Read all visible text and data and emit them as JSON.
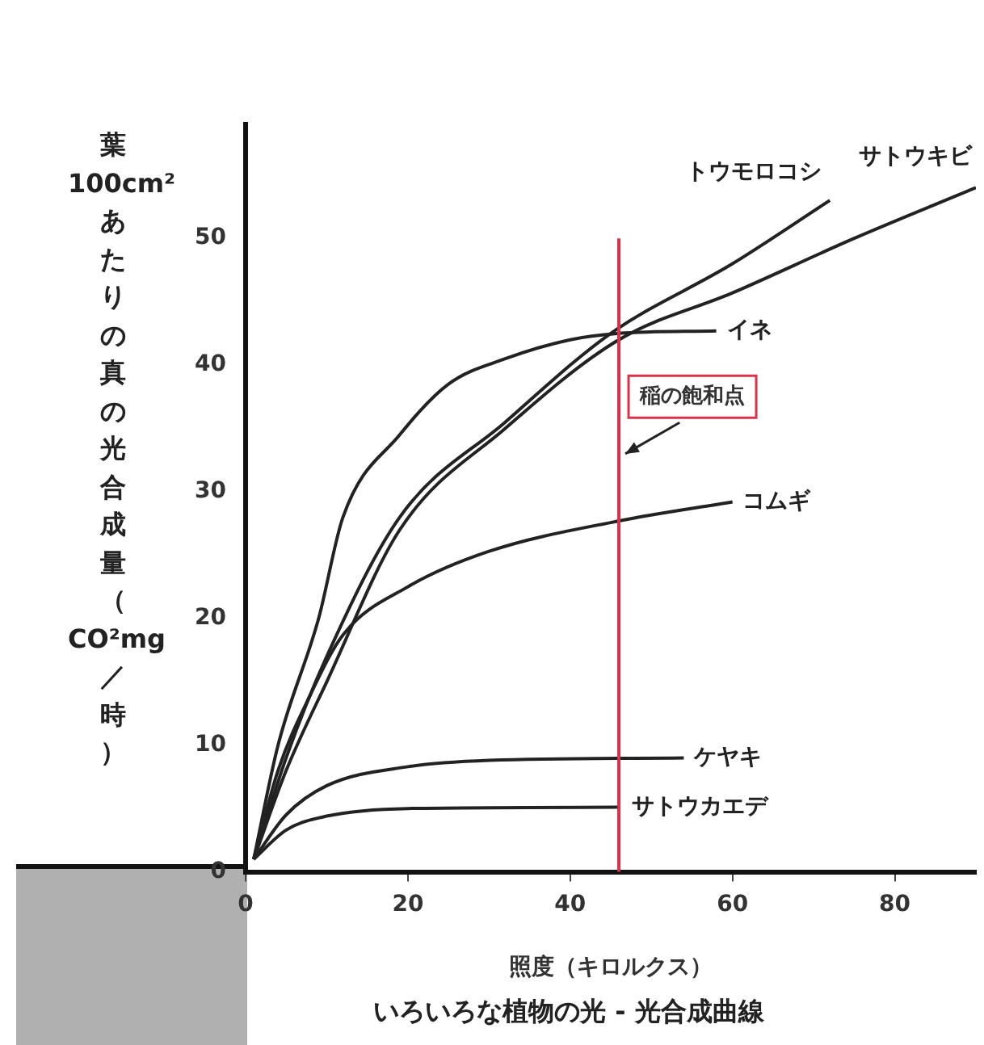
{
  "chart_data": {
    "type": "line",
    "title": "いろいろな植物の光 - 光合成曲線",
    "xlabel": "照度（キロルクス）",
    "ylabel": "葉100cm²あたりの真の光合成量（CO²mg／時）",
    "xlim": [
      0,
      90
    ],
    "xticks": [
      0,
      20,
      40,
      60,
      80
    ],
    "ylim": [
      0,
      59
    ],
    "yticks": [
      0,
      10,
      20,
      30,
      40,
      50
    ],
    "grid": false,
    "legend": false,
    "marker": "none",
    "line_style": "solid",
    "ref_lines": [
      {
        "axis": "x",
        "value": 46,
        "label": "稲の飽和点",
        "color": "#d9334a"
      }
    ],
    "series": [
      {
        "name": "サトウキビ",
        "color": "#222222",
        "x": [
          1,
          5,
          10,
          19,
          32,
          46,
          60,
          75,
          90
        ],
        "values": [
          1,
          8,
          15,
          27,
          35,
          42,
          45.7,
          50,
          54
        ]
      },
      {
        "name": "トウモロコシ",
        "color": "#222222",
        "x": [
          1,
          5,
          10,
          19,
          32,
          45,
          60,
          72
        ],
        "values": [
          1,
          9,
          17,
          28,
          35.5,
          42.5,
          48,
          53
        ]
      },
      {
        "name": "イネ",
        "color": "#222222",
        "x": [
          1,
          4,
          9,
          12,
          19,
          25,
          32,
          40,
          46,
          58
        ],
        "values": [
          1,
          10,
          20,
          28,
          34.5,
          38.5,
          40.5,
          42,
          42.5,
          42.7
        ]
      },
      {
        "name": "コムギ",
        "color": "#222222",
        "x": [
          1,
          4,
          8,
          12,
          20,
          30,
          46,
          60
        ],
        "values": [
          1,
          8,
          14,
          18.7,
          22.5,
          25.3,
          27.7,
          29.2
        ]
      },
      {
        "name": "ケヤキ",
        "color": "#222222",
        "x": [
          1,
          5,
          10,
          20,
          30,
          54
        ],
        "values": [
          1,
          4.5,
          6.8,
          8.3,
          8.8,
          9
        ]
      },
      {
        "name": "サトウカエデ",
        "color": "#222222",
        "x": [
          1,
          5,
          10,
          20,
          46
        ],
        "values": [
          1,
          3.3,
          4.4,
          5,
          5.1
        ]
      }
    ]
  }
}
